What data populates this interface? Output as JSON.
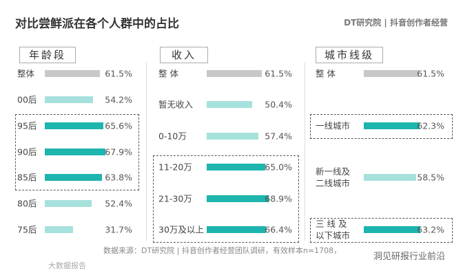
{
  "title": "对比尝鲜派在各个人群中的占比",
  "brand": "DT研究院 | 抖音创作者经营",
  "source": "数据来源：DT研究院 | 抖音创作者经营团队调研，有效样本n=1708，",
  "watermark_left": "大数据报告",
  "watermark_right": "洞见研报行业前沿",
  "chart_data": [
    {
      "type": "bar",
      "title": "年龄段",
      "categories": [
        "整体",
        "00后",
        "95后",
        "90后",
        "85后",
        "80后",
        "75后"
      ],
      "values": [
        61.5,
        54.2,
        65.6,
        67.9,
        63.8,
        52.4,
        31.7
      ],
      "value_labels": [
        "61.5%",
        "54.2%",
        "65.6%",
        "67.9%",
        "63.8%",
        "52.4%",
        "31.7%"
      ],
      "colors": [
        "#c8c8c8",
        "#a6e1dc",
        "#1db5ad",
        "#1db5ad",
        "#1db5ad",
        "#a6e1dc",
        "#a6e1dc"
      ]
    },
    {
      "type": "bar",
      "title": "收入",
      "categories": [
        "整 体",
        "暂无收入",
        "0-10万",
        "11-20万",
        "21-30万",
        "30万及以上"
      ],
      "values": [
        61.5,
        50.4,
        57.4,
        65.0,
        68.9,
        66.4
      ],
      "value_labels": [
        "61.5%",
        "50.4%",
        "57.4%",
        "65.0%",
        "68.9%",
        "66.4%"
      ],
      "colors": [
        "#c8c8c8",
        "#a6e1dc",
        "#a6e1dc",
        "#1db5ad",
        "#1db5ad",
        "#1db5ad"
      ]
    },
    {
      "type": "bar",
      "title": "城市线级",
      "categories": [
        "整 体",
        "一线城市",
        "新一线及\n二线城市",
        "三 线 及\n以下城市"
      ],
      "values": [
        61.5,
        62.3,
        58.5,
        63.2
      ],
      "value_labels": [
        "61.5%",
        "62.3%",
        "58.5%",
        "63.2%"
      ],
      "colors": [
        "#c8c8c8",
        "#1db5ad",
        "#a6e1dc",
        "#1db5ad"
      ]
    }
  ]
}
